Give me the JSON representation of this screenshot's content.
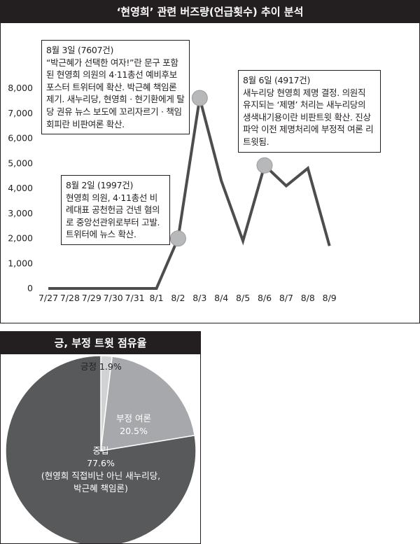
{
  "line_panel": {
    "header": "‘현영희’ 관련 버즈량(언급횟수) 추이 분석"
  },
  "pie_panel": {
    "header": "긍, 부정 트윗 점유율"
  },
  "chart_data": [
    {
      "type": "line",
      "title": "‘현영희’ 관련 버즈량(언급횟수) 추이 분석",
      "categories": [
        "7/27",
        "7/28",
        "7/29",
        "7/30",
        "7/31",
        "8/1",
        "8/2",
        "8/3",
        "8/4",
        "8/5",
        "8/6",
        "8/7",
        "8/8",
        "8/9"
      ],
      "values": [
        0,
        0,
        0,
        0,
        0,
        0,
        1997,
        7607,
        4300,
        1900,
        4917,
        4100,
        4800,
        1700
      ],
      "ylim": [
        0,
        8000
      ],
      "yticks": [
        0,
        1000,
        2000,
        3000,
        4000,
        5000,
        6000,
        7000,
        8000
      ],
      "ytick_labels": [
        "0",
        "1,000",
        "2,000",
        "3,000",
        "4,000",
        "5,000",
        "6,000",
        "7,000",
        "8,000"
      ],
      "highlight_indices": [
        6,
        7,
        10
      ],
      "grid": false,
      "line_color": "#4d4d4f",
      "marker_color": "#b7b8ba",
      "annotations": [
        {
          "date": "8월 3일 (7607건)",
          "text": "“박근혜가 선택한 여자!”란 문구 포함된 현영희 의원의 4·11총선 예비후보 포스터 트위터에 확산. 박근혜 책임론 제기. 새누리당, 현영희 · 현기환에게 탈당 권유 뉴스 보도에 꼬리자르기 · 책임회피란 비판여론 확산."
        },
        {
          "date": "8월 6일 (4917건)",
          "text": "새누리당 현영희 제명 결정. 의원직 유지되는 ‘제명’ 처리는 새누리당의 생색내기용이란 비판트윗 확산. 진상파악 이전 제명처리에 부정적 여론 리트윗됨."
        },
        {
          "date": "8월 2일 (1997건)",
          "text": "현영희 의원, 4·11총선 비례대표 공천헌금 건넨 혐의로 중앙선관위로부터 고발. 트위터에 뉴스 확산."
        }
      ]
    },
    {
      "type": "pie",
      "title": "긍, 부정 트윗 점유율",
      "slices": [
        {
          "label": "긍정",
          "value": 1.9,
          "display": "1.9%",
          "color": "#d1d2d4"
        },
        {
          "label": "부정 여론",
          "value": 20.5,
          "display": "20.5%",
          "color": "#a6a8ab"
        },
        {
          "label": "중립",
          "value": 77.6,
          "display": "77.6%",
          "note": "(현영희 직접비난 아닌 새누리당, 박근혜 책임론)",
          "color": "#58595b"
        }
      ]
    }
  ]
}
